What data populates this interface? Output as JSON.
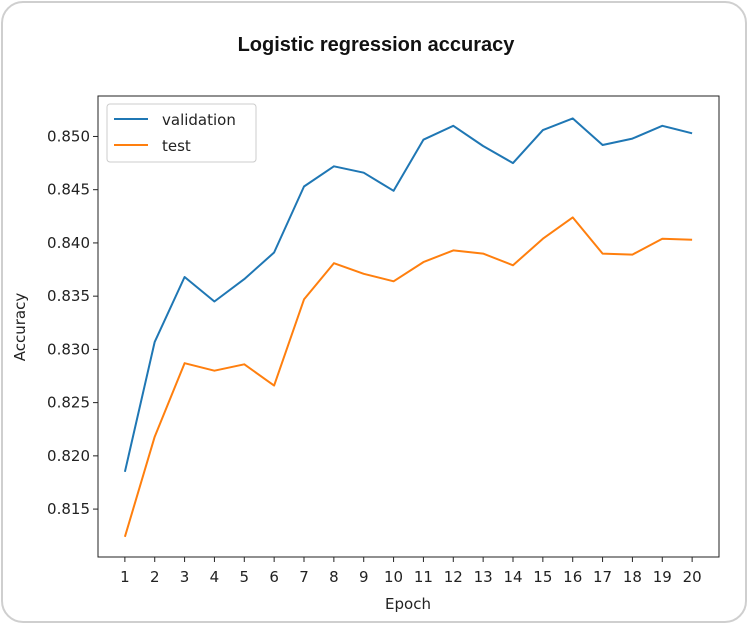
{
  "colors": {
    "validation": "#1f77b4",
    "test": "#ff7f0e",
    "axis": "#222222",
    "card_border": "#cfcfcf"
  },
  "chart_data": {
    "type": "line",
    "title": "Logistic regression accuracy",
    "xlabel": "Epoch",
    "ylabel": "Accuracy",
    "x": [
      1,
      2,
      3,
      4,
      5,
      6,
      7,
      8,
      9,
      10,
      11,
      12,
      13,
      14,
      15,
      16,
      17,
      18,
      19,
      20
    ],
    "xlim": [
      0.1,
      20.9
    ],
    "ylim": [
      0.8105,
      0.8538
    ],
    "yticks": [
      0.815,
      0.82,
      0.825,
      0.83,
      0.835,
      0.84,
      0.845,
      0.85
    ],
    "ytick_labels": [
      "0.815",
      "0.820",
      "0.825",
      "0.830",
      "0.835",
      "0.840",
      "0.845",
      "0.850"
    ],
    "xtick_labels": [
      "1",
      "2",
      "3",
      "4",
      "5",
      "6",
      "7",
      "8",
      "9",
      "10",
      "11",
      "12",
      "13",
      "14",
      "15",
      "16",
      "17",
      "18",
      "19",
      "20"
    ],
    "grid": false,
    "legend_position": "top-left",
    "series": [
      {
        "name": "validation",
        "color": "#1f77b4",
        "values": [
          0.8185,
          0.8307,
          0.8368,
          0.8345,
          0.8366,
          0.8391,
          0.8453,
          0.8472,
          0.8466,
          0.8449,
          0.8497,
          0.851,
          0.8491,
          0.8475,
          0.8506,
          0.8517,
          0.8492,
          0.8498,
          0.851,
          0.8503
        ]
      },
      {
        "name": "test",
        "color": "#ff7f0e",
        "values": [
          0.8124,
          0.8218,
          0.8287,
          0.828,
          0.8286,
          0.8266,
          0.8347,
          0.8381,
          0.8371,
          0.8364,
          0.8382,
          0.8393,
          0.839,
          0.8379,
          0.8404,
          0.8424,
          0.839,
          0.8389,
          0.8404,
          0.8403
        ]
      }
    ]
  }
}
